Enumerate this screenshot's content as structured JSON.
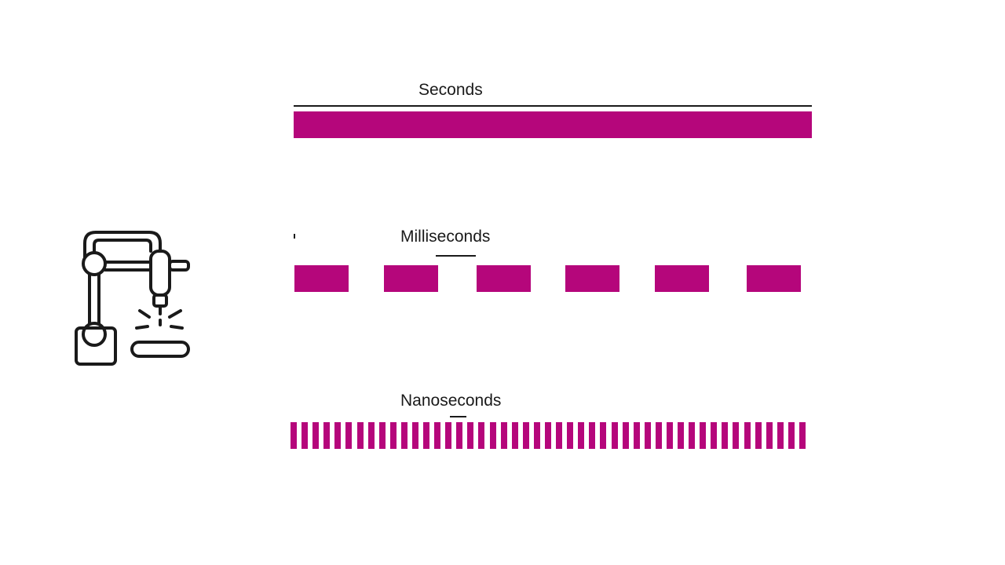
{
  "colors": {
    "bar": "#b5067b",
    "ink": "#1a1a1a"
  },
  "icon": "robotic-welding-arm-icon",
  "rows": [
    {
      "label": "Seconds",
      "pattern": "solid"
    },
    {
      "label": "Milliseconds",
      "pattern": "dashed-long"
    },
    {
      "label": "Nanoseconds",
      "pattern": "dashed-fine"
    }
  ]
}
